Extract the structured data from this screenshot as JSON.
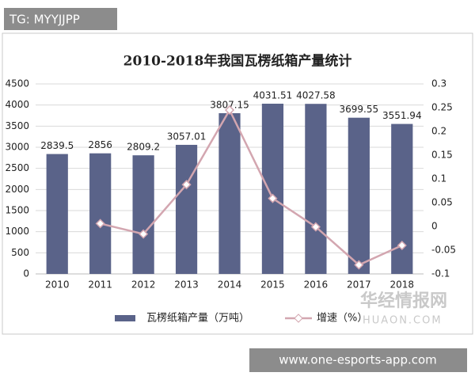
{
  "overlay": {
    "tag": "TG: MYYJJPP",
    "watermark": "华经情报网",
    "watermark_sub": "HUAON.COM",
    "url": "www.one-esports-app.com"
  },
  "chart_data": {
    "type": "bar",
    "title": "2010-2018年我国瓦楞纸箱产量统计",
    "categories": [
      "2010",
      "2011",
      "2012",
      "2013",
      "2014",
      "2015",
      "2016",
      "2017",
      "2018"
    ],
    "series": [
      {
        "name": "瓦楞纸箱产量（万吨）",
        "type": "bar",
        "color": "#5a6389",
        "values": [
          2839.5,
          2856,
          2809.2,
          3057.01,
          3807.15,
          4031.51,
          4027.58,
          3699.55,
          3551.94
        ]
      },
      {
        "name": "增速（%）",
        "type": "line",
        "axis": "y2",
        "color": "#d3a6b0",
        "values": [
          null,
          0.006,
          -0.016,
          0.088,
          0.245,
          0.059,
          -0.001,
          -0.081,
          -0.04
        ]
      }
    ],
    "ylim": [
      0,
      4500
    ],
    "yticks": [
      0,
      500,
      1000,
      1500,
      2000,
      2500,
      3000,
      3500,
      4000,
      4500
    ],
    "y2lim": [
      -0.1,
      0.3
    ],
    "y2ticks": [
      -0.1,
      -0.05,
      0,
      0.05,
      0.1,
      0.15,
      0.2,
      0.25,
      0.3
    ],
    "grid": true,
    "legend": "bottom"
  }
}
